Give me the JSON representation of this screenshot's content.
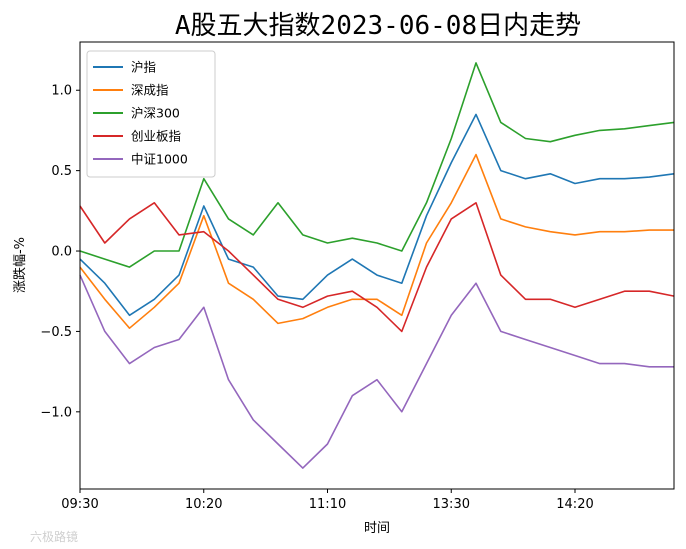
{
  "chart_data": {
    "type": "line",
    "title": "A股五大指数2023-06-08日内走势",
    "xlabel": "时间",
    "ylabel": "涨跌幅-%",
    "xlim": [
      "09:30",
      "15:00"
    ],
    "ylim": [
      -1.48,
      1.3
    ],
    "x_ticks": [
      "09:30",
      "10:20",
      "11:10",
      "13:30",
      "14:20"
    ],
    "y_ticks": [
      -1.0,
      -0.5,
      0.0,
      0.5,
      1.0
    ],
    "y_tick_labels": [
      "−1.0",
      "−0.5",
      "0.0",
      "0.5",
      "1.0"
    ],
    "grid": false,
    "legend_position": "top-left",
    "series": [
      {
        "name": "沪指",
        "color": "#1f77b4",
        "x": [
          "09:30",
          "09:40",
          "09:50",
          "10:00",
          "10:10",
          "10:20",
          "10:30",
          "10:40",
          "10:50",
          "11:00",
          "11:10",
          "11:20",
          "11:30",
          "13:10",
          "13:20",
          "13:30",
          "13:40",
          "13:50",
          "14:00",
          "14:10",
          "14:20",
          "14:30",
          "14:40",
          "14:50",
          "15:00"
        ],
        "values": [
          -0.05,
          -0.2,
          -0.4,
          -0.3,
          -0.15,
          0.28,
          -0.05,
          -0.1,
          -0.28,
          -0.3,
          -0.15,
          -0.05,
          -0.15,
          -0.2,
          0.22,
          0.55,
          0.85,
          0.5,
          0.45,
          0.48,
          0.42,
          0.45,
          0.45,
          0.46,
          0.48
        ]
      },
      {
        "name": "深成指",
        "color": "#ff7f0e",
        "x": [
          "09:30",
          "09:40",
          "09:50",
          "10:00",
          "10:10",
          "10:20",
          "10:30",
          "10:40",
          "10:50",
          "11:00",
          "11:10",
          "11:20",
          "11:30",
          "13:10",
          "13:20",
          "13:30",
          "13:40",
          "13:50",
          "14:00",
          "14:10",
          "14:20",
          "14:30",
          "14:40",
          "14:50",
          "15:00"
        ],
        "values": [
          -0.1,
          -0.3,
          -0.48,
          -0.35,
          -0.2,
          0.22,
          -0.2,
          -0.3,
          -0.45,
          -0.42,
          -0.35,
          -0.3,
          -0.3,
          -0.4,
          0.05,
          0.3,
          0.6,
          0.2,
          0.15,
          0.12,
          0.1,
          0.12,
          0.12,
          0.13,
          0.13
        ]
      },
      {
        "name": "沪深300",
        "color": "#2ca02c",
        "x": [
          "09:30",
          "09:40",
          "09:50",
          "10:00",
          "10:10",
          "10:20",
          "10:30",
          "10:40",
          "10:50",
          "11:00",
          "11:10",
          "11:20",
          "11:30",
          "13:10",
          "13:20",
          "13:30",
          "13:40",
          "13:50",
          "14:00",
          "14:10",
          "14:20",
          "14:30",
          "14:40",
          "14:50",
          "15:00"
        ],
        "values": [
          0.0,
          -0.05,
          -0.1,
          0.0,
          0.0,
          0.45,
          0.2,
          0.1,
          0.3,
          0.1,
          0.05,
          0.08,
          0.05,
          0.0,
          0.3,
          0.7,
          1.17,
          0.8,
          0.7,
          0.68,
          0.72,
          0.75,
          0.76,
          0.78,
          0.8
        ]
      },
      {
        "name": "创业板指",
        "color": "#d62728",
        "x": [
          "09:30",
          "09:40",
          "09:50",
          "10:00",
          "10:10",
          "10:20",
          "10:30",
          "10:40",
          "10:50",
          "11:00",
          "11:10",
          "11:20",
          "11:30",
          "13:10",
          "13:20",
          "13:30",
          "13:40",
          "13:50",
          "14:00",
          "14:10",
          "14:20",
          "14:30",
          "14:40",
          "14:50",
          "15:00"
        ],
        "values": [
          0.28,
          0.05,
          0.2,
          0.3,
          0.1,
          0.12,
          0.0,
          -0.15,
          -0.3,
          -0.35,
          -0.28,
          -0.25,
          -0.35,
          -0.5,
          -0.1,
          0.2,
          0.3,
          -0.15,
          -0.3,
          -0.3,
          -0.35,
          -0.3,
          -0.25,
          -0.25,
          -0.28
        ]
      },
      {
        "name": "中证1000",
        "color": "#9467bd",
        "x": [
          "09:30",
          "09:40",
          "09:50",
          "10:00",
          "10:10",
          "10:20",
          "10:30",
          "10:40",
          "10:50",
          "11:00",
          "11:10",
          "11:20",
          "11:30",
          "13:10",
          "13:20",
          "13:30",
          "13:40",
          "13:50",
          "14:00",
          "14:10",
          "14:20",
          "14:30",
          "14:40",
          "14:50",
          "15:00"
        ],
        "values": [
          -0.15,
          -0.5,
          -0.7,
          -0.6,
          -0.55,
          -0.35,
          -0.8,
          -1.05,
          -1.2,
          -1.35,
          -1.2,
          -0.9,
          -0.8,
          -1.0,
          -0.7,
          -0.4,
          -0.2,
          -0.5,
          -0.55,
          -0.6,
          -0.65,
          -0.7,
          -0.7,
          -0.72,
          -0.72
        ]
      }
    ]
  },
  "watermark": {
    "text": "六极路镜"
  }
}
